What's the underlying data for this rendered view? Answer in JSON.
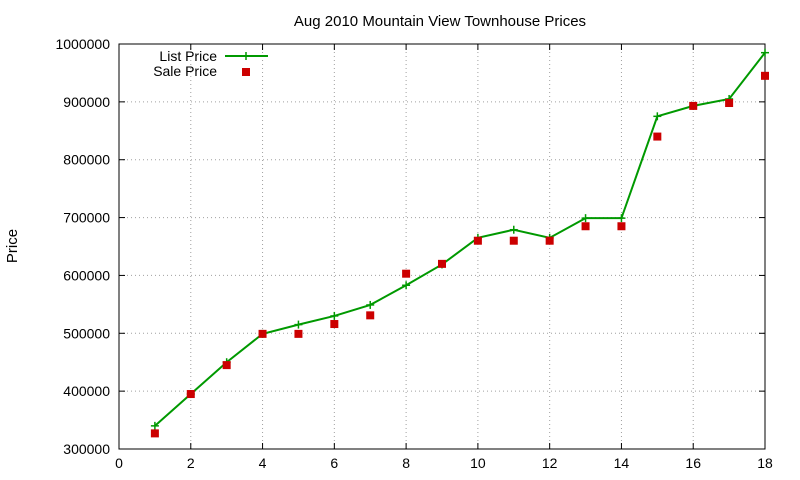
{
  "chart_data": {
    "type": "line",
    "title": "Aug 2010 Mountain View Townhouse Prices",
    "xlabel": "",
    "ylabel": "Price",
    "xlim": [
      0,
      18
    ],
    "ylim": [
      300000,
      1000000
    ],
    "xticks": [
      0,
      2,
      4,
      6,
      8,
      10,
      12,
      14,
      16,
      18
    ],
    "yticks": [
      300000,
      400000,
      500000,
      600000,
      700000,
      800000,
      900000,
      1000000
    ],
    "grid": true,
    "legend_position": "top-left",
    "series": [
      {
        "name": "List Price",
        "style": "line-with-plus-markers",
        "color": "#009900",
        "x": [
          1,
          2,
          3,
          4,
          5,
          6,
          7,
          8,
          9,
          10,
          11,
          12,
          13,
          14,
          15,
          16,
          17,
          18
        ],
        "values": [
          340000,
          395000,
          450000,
          499000,
          515000,
          530000,
          549000,
          583000,
          619000,
          665000,
          679000,
          665000,
          699000,
          699000,
          875000,
          893000,
          905000,
          985000
        ]
      },
      {
        "name": "Sale Price",
        "style": "square-markers",
        "color": "#cc0000",
        "x": [
          1,
          2,
          3,
          4,
          5,
          6,
          7,
          8,
          9,
          10,
          11,
          12,
          13,
          14,
          15,
          16,
          17,
          18
        ],
        "values": [
          327000,
          395000,
          445000,
          499000,
          499000,
          516000,
          531000,
          603000,
          620000,
          660000,
          660000,
          660000,
          685000,
          685000,
          840000,
          893000,
          898000,
          945000
        ]
      }
    ]
  }
}
